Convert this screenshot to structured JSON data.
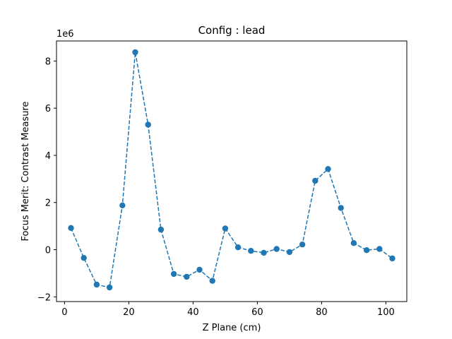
{
  "chart_data": {
    "type": "line",
    "title": "Config : lead",
    "xlabel": "Z Plane (cm)",
    "ylabel": "Focus Merit: Contrast Measure",
    "y_offset_label": "1e6",
    "y_scale": 1000000,
    "xlim": [
      -2.5,
      106.5
    ],
    "ylim": [
      -2.2,
      8.85
    ],
    "x_ticks": [
      0,
      20,
      40,
      60,
      80,
      100
    ],
    "y_ticks": [
      -2,
      0,
      2,
      4,
      6,
      8
    ],
    "grid": false,
    "series": [
      {
        "line_style": "dashed",
        "marker": "circle",
        "color": "#1f77b4",
        "x": [
          2,
          6,
          10,
          14,
          18,
          22,
          26,
          30,
          34,
          38,
          42,
          46,
          50,
          54,
          58,
          62,
          66,
          70,
          74,
          78,
          82,
          86,
          90,
          94,
          98,
          102
        ],
        "y": [
          0.92,
          -0.35,
          -1.48,
          -1.6,
          1.88,
          8.37,
          5.3,
          0.85,
          -1.03,
          -1.15,
          -0.85,
          -1.32,
          0.9,
          0.1,
          -0.05,
          -0.13,
          0.03,
          -0.1,
          0.22,
          2.92,
          3.42,
          1.77,
          0.28,
          -0.02,
          0.03,
          -0.37
        ]
      }
    ]
  }
}
